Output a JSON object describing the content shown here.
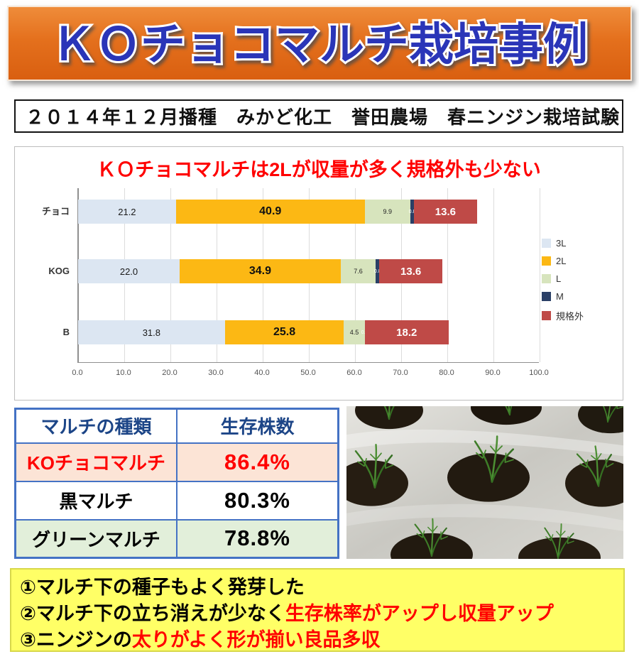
{
  "header": {
    "title": "ＫＯチョコマルチ栽培事例"
  },
  "subtitle": {
    "text": "２０１４年１２月播種　みかど化工　誉田農場　春ニンジン栽培試験"
  },
  "colors": {
    "banner_background": "#e4701d",
    "banner_title": "#2b35b8",
    "chart_title": "#ff0000",
    "table_border": "#4472c4",
    "notes_background": "#ffff66"
  },
  "chart": {
    "title": "ＫＯチョコマルチは2Lが収量が多く規格外も少ない",
    "chart_data": {
      "type": "bar",
      "orientation": "horizontal",
      "categories": [
        "チョコ",
        "KOG",
        "B"
      ],
      "series": [
        {
          "name": "3L",
          "color": "#dce6f2",
          "values": [
            21.2,
            22.0,
            31.8
          ]
        },
        {
          "name": "2L",
          "color": "#fcb814",
          "values": [
            40.9,
            34.9,
            25.8
          ]
        },
        {
          "name": "L",
          "color": "#d7e4bd",
          "values": [
            9.9,
            7.6,
            4.5
          ]
        },
        {
          "name": "M",
          "color": "#2a3f66",
          "values": [
            0.8,
            0.8,
            0.0
          ]
        },
        {
          "name": "規格外",
          "color": "#bf4a47",
          "values": [
            13.6,
            13.6,
            18.2
          ]
        }
      ],
      "xlim": [
        0,
        100
      ],
      "xticks": [
        "0.0",
        "10.0",
        "20.0",
        "30.0",
        "40.0",
        "50.0",
        "60.0",
        "70.0",
        "80.0",
        "90.0",
        "100.0"
      ],
      "grid": true,
      "legend_position": "right"
    }
  },
  "table": {
    "headers": [
      "マルチの種類",
      "生存株数"
    ],
    "rows": [
      {
        "label": "KOチョコマルチ",
        "value": "86.4%",
        "bg": "#fce4d6",
        "fg": "#ff0000"
      },
      {
        "label": "黒マルチ",
        "value": "80.3%",
        "bg": "#ffffff",
        "fg": "#000000"
      },
      {
        "label": "グリーンマルチ",
        "value": "78.8%",
        "bg": "#e2efda",
        "fg": "#000000"
      }
    ]
  },
  "notes": {
    "bg": "#ffff66",
    "lines": [
      {
        "parts": [
          {
            "text": "①マルチ下の種子もよく発芽した",
            "color": "#000000"
          }
        ]
      },
      {
        "parts": [
          {
            "text": "②マルチ下の立ち消えが少なく",
            "color": "#000000"
          },
          {
            "text": "生存株率がアップし収量アップ",
            "color": "#ff0000"
          }
        ]
      },
      {
        "parts": [
          {
            "text": "③ニンジンの",
            "color": "#000000"
          },
          {
            "text": "太りがよく形が揃い良品多収",
            "color": "#ff0000"
          }
        ]
      }
    ]
  }
}
